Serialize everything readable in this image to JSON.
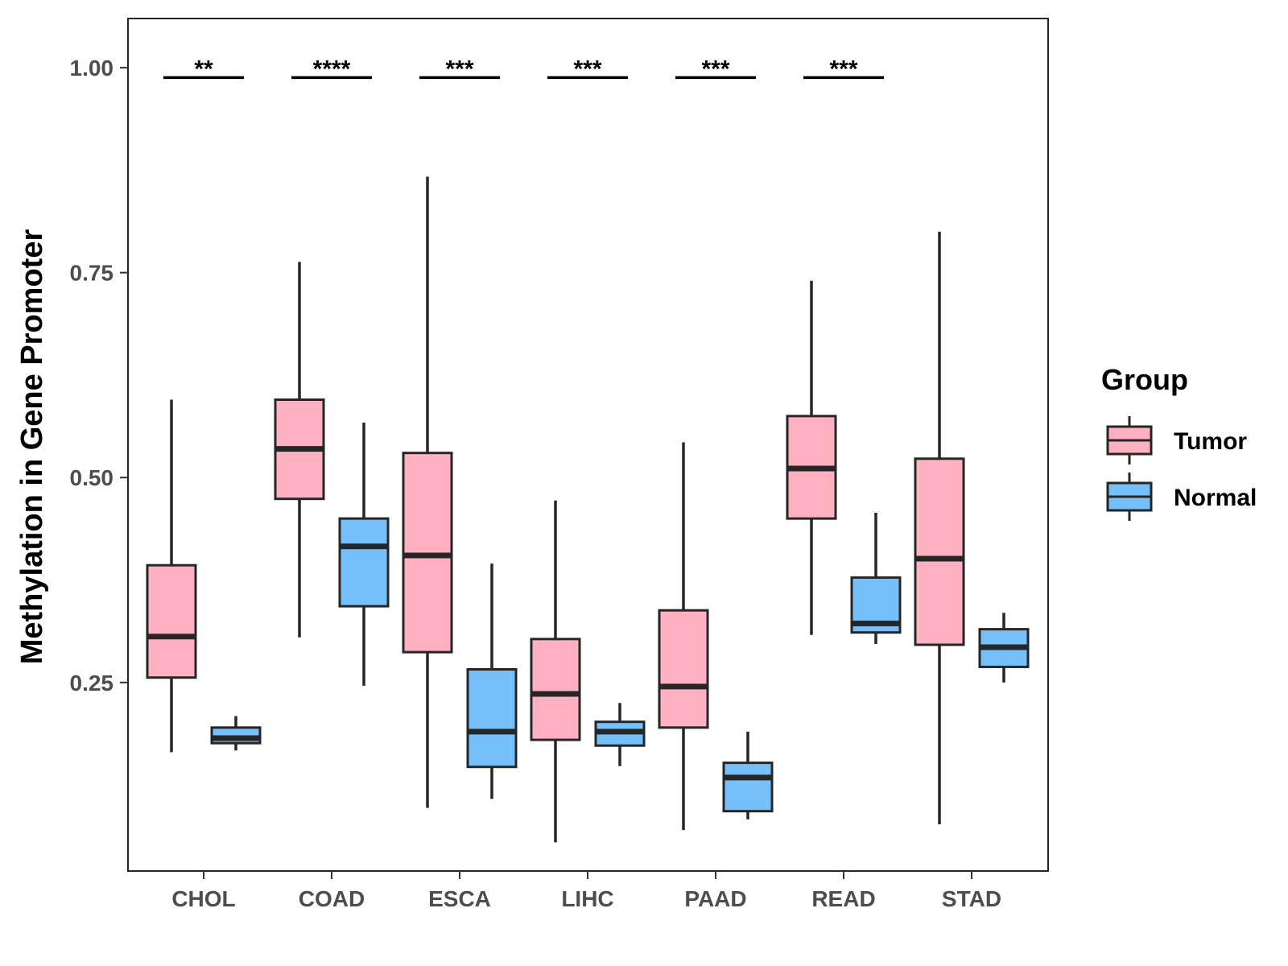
{
  "chart_data": {
    "type": "boxplot",
    "title": "",
    "xlabel": "",
    "ylabel": "Methylation in Gene Promoter",
    "ylim": [
      0.02,
      1.06
    ],
    "yticks": [
      "0.25",
      "0.50",
      "0.75",
      "1.00"
    ],
    "grid": false,
    "legend": {
      "title": "Group",
      "position": "right",
      "entries": [
        "Tumor",
        "Normal"
      ]
    },
    "colors": {
      "Tumor": "#FFB1C1",
      "Normal": "#75C0FA",
      "stroke": "#262626"
    },
    "categories": [
      "CHOL",
      "COAD",
      "ESCA",
      "LIHC",
      "PAAD",
      "READ",
      "STAD"
    ],
    "series": [
      {
        "name": "Tumor",
        "boxes": [
          {
            "min": 0.165,
            "q1": 0.256,
            "median": 0.306,
            "q3": 0.393,
            "max": 0.595
          },
          {
            "min": 0.305,
            "q1": 0.474,
            "median": 0.535,
            "q3": 0.595,
            "max": 0.763
          },
          {
            "min": 0.097,
            "q1": 0.287,
            "median": 0.405,
            "q3": 0.53,
            "max": 0.867
          },
          {
            "min": 0.055,
            "q1": 0.18,
            "median": 0.236,
            "q3": 0.303,
            "max": 0.472
          },
          {
            "min": 0.07,
            "q1": 0.195,
            "median": 0.245,
            "q3": 0.338,
            "max": 0.543
          },
          {
            "min": 0.308,
            "q1": 0.45,
            "median": 0.511,
            "q3": 0.575,
            "max": 0.74
          },
          {
            "min": 0.077,
            "q1": 0.296,
            "median": 0.401,
            "q3": 0.523,
            "max": 0.8
          }
        ]
      },
      {
        "name": "Normal",
        "boxes": [
          {
            "min": 0.167,
            "q1": 0.176,
            "median": 0.182,
            "q3": 0.195,
            "max": 0.209
          },
          {
            "min": 0.246,
            "q1": 0.343,
            "median": 0.416,
            "q3": 0.45,
            "max": 0.567
          },
          {
            "min": 0.108,
            "q1": 0.147,
            "median": 0.19,
            "q3": 0.266,
            "max": 0.395
          },
          {
            "min": 0.148,
            "q1": 0.173,
            "median": 0.19,
            "q3": 0.202,
            "max": 0.225
          },
          {
            "min": 0.083,
            "q1": 0.093,
            "median": 0.134,
            "q3": 0.152,
            "max": 0.19
          },
          {
            "min": 0.297,
            "q1": 0.311,
            "median": 0.322,
            "q3": 0.378,
            "max": 0.457
          },
          {
            "min": 0.25,
            "q1": 0.269,
            "median": 0.293,
            "q3": 0.315,
            "max": 0.335
          }
        ]
      }
    ],
    "significance": [
      {
        "category": "CHOL",
        "label": "**"
      },
      {
        "category": "COAD",
        "label": "****"
      },
      {
        "category": "ESCA",
        "label": "***"
      },
      {
        "category": "LIHC",
        "label": "***"
      },
      {
        "category": "PAAD",
        "label": "***"
      },
      {
        "category": "READ",
        "label": "***"
      }
    ],
    "significance_y": 0.988
  }
}
